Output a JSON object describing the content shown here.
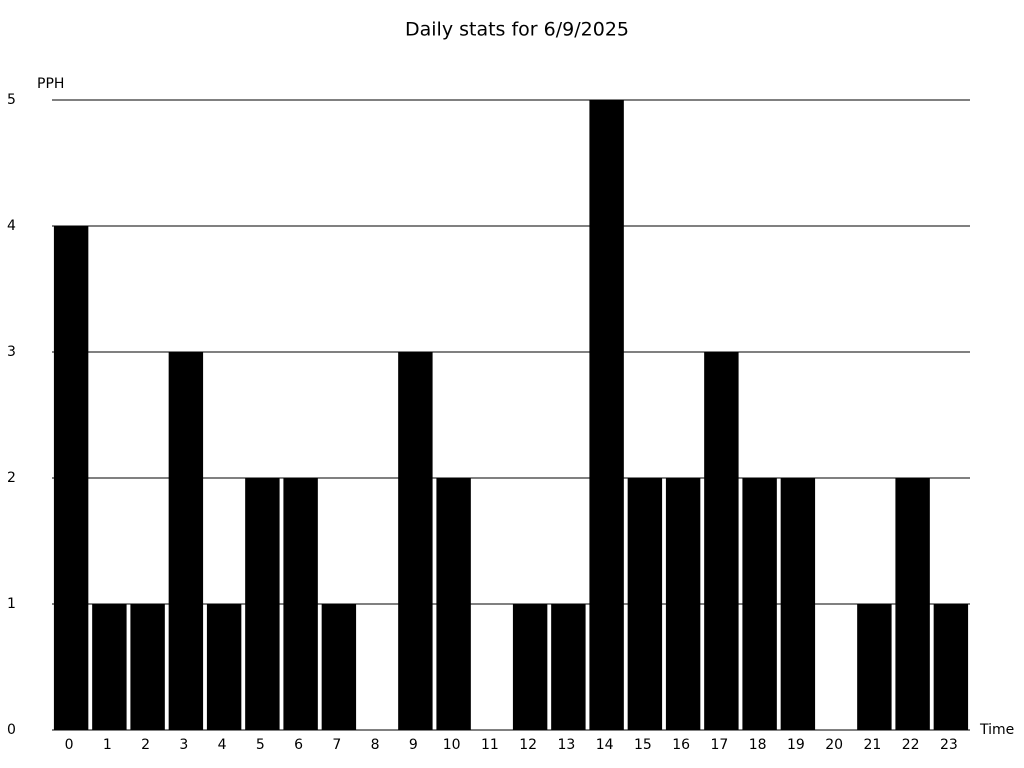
{
  "chart_data": {
    "type": "bar",
    "title": "Daily stats for 6/9/2025",
    "y_label": "PPH",
    "x_label": "Time",
    "categories": [
      "0",
      "1",
      "2",
      "3",
      "4",
      "5",
      "6",
      "7",
      "8",
      "9",
      "10",
      "11",
      "12",
      "13",
      "14",
      "15",
      "16",
      "17",
      "18",
      "19",
      "20",
      "21",
      "22",
      "23"
    ],
    "values": [
      4,
      1,
      1,
      3,
      1,
      2,
      2,
      1,
      0,
      3,
      2,
      0,
      1,
      1,
      5,
      2,
      2,
      3,
      2,
      2,
      0,
      1,
      2,
      1
    ],
    "color": "#000000",
    "ylim": [
      0,
      5
    ],
    "yticks": [
      0,
      1,
      2,
      3,
      4,
      5
    ],
    "grid": true
  }
}
